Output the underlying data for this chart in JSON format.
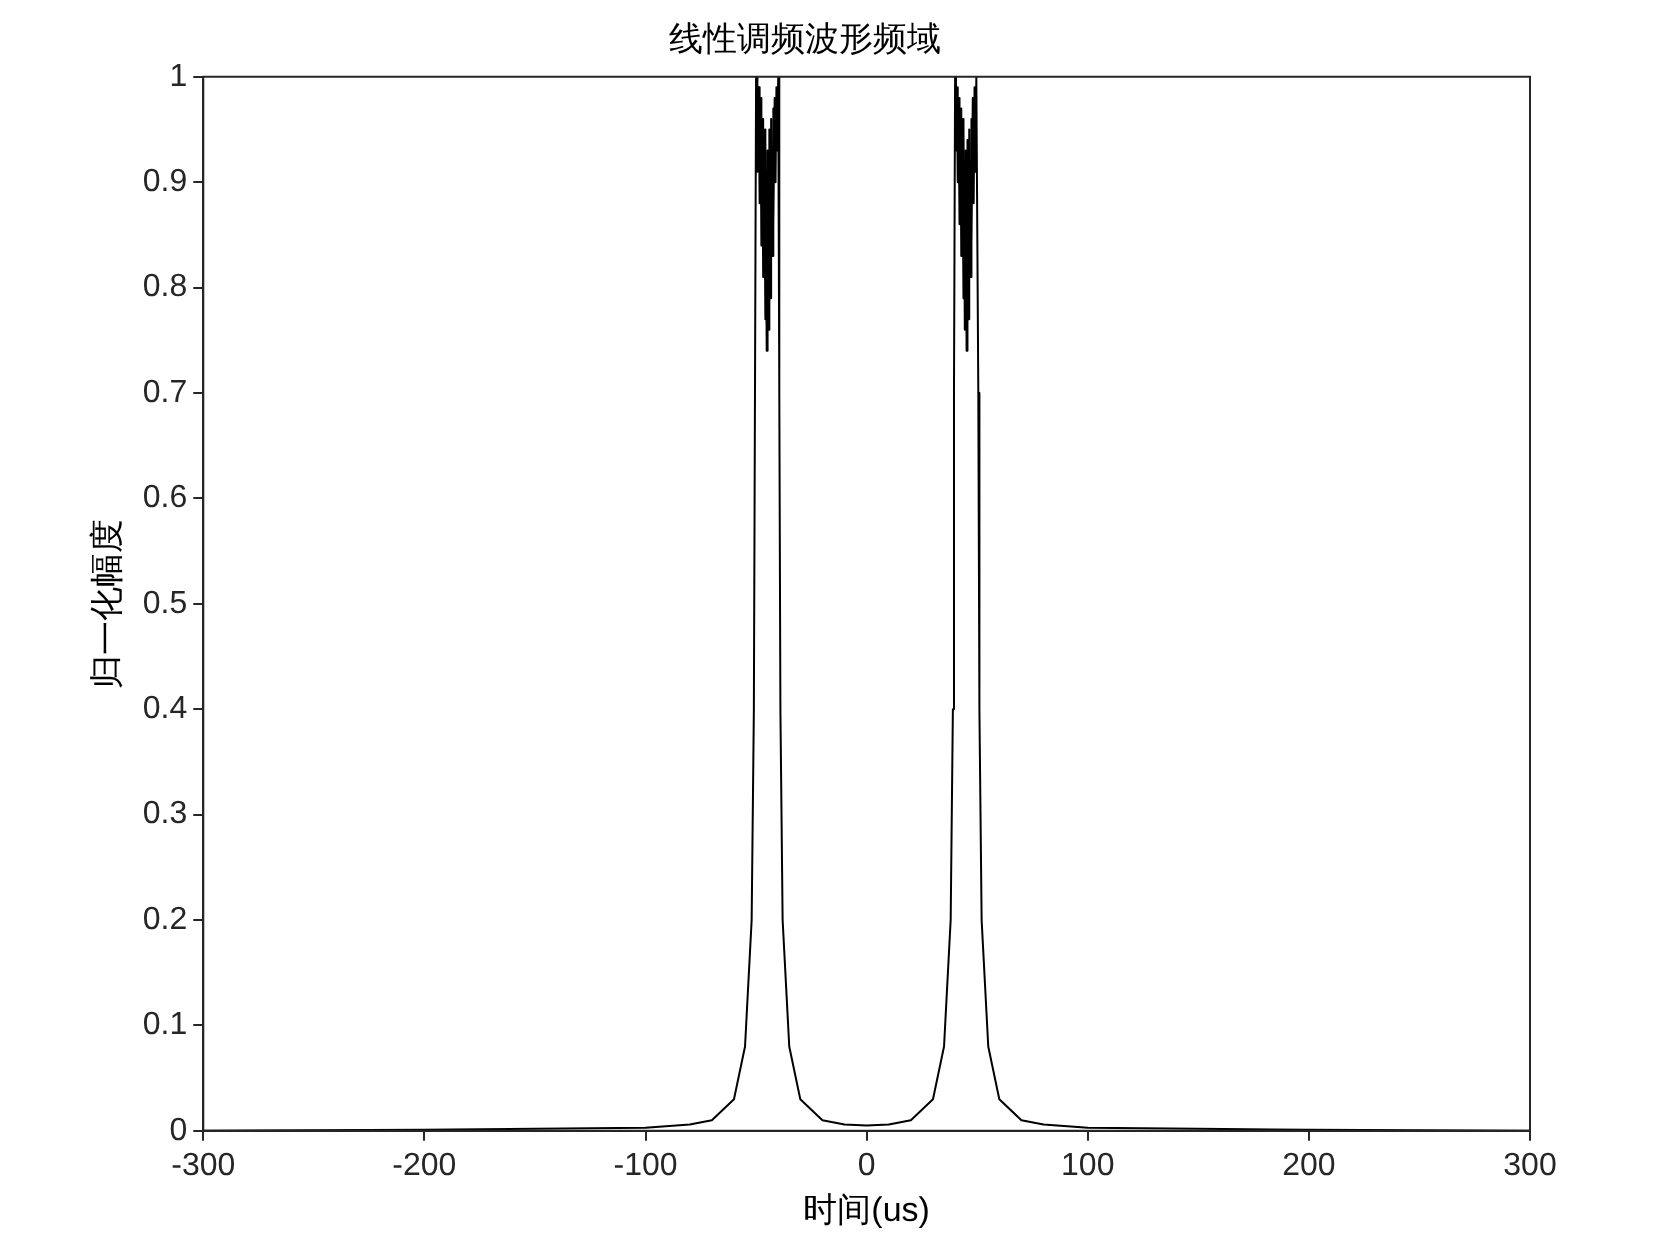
{
  "chart_data": {
    "type": "line",
    "title": "线性调频波形频域",
    "xlabel": "时间(us)",
    "ylabel": "归一化幅度",
    "xlim": [
      -300,
      300
    ],
    "xticks": [
      -300,
      -200,
      -100,
      0,
      100,
      200,
      300
    ],
    "ylim": [
      0,
      1
    ],
    "yticks": [
      0,
      0.1,
      0.2,
      0.3,
      0.4,
      0.5,
      0.6,
      0.7,
      0.8,
      0.9,
      1
    ],
    "grid": false,
    "legend": false,
    "marker": "none",
    "line_style": "solid",
    "x": [
      -300,
      -200,
      -150,
      -100,
      -80,
      -70,
      -60,
      -55,
      -52,
      -51,
      -50.5,
      -50,
      -49.6,
      -49.2,
      -48.8,
      -48.4,
      -48,
      -47.6,
      -47.2,
      -46.8,
      -46.4,
      -46,
      -45.6,
      -45.2,
      -44.8,
      -44.4,
      -44,
      -43.6,
      -43.2,
      -42.8,
      -42.4,
      -42,
      -41.6,
      -41.2,
      -40.8,
      -40.4,
      -40,
      -39.5,
      -39,
      -38,
      -35,
      -30,
      -20,
      -10,
      0,
      10,
      20,
      30,
      35,
      38,
      39,
      39.5,
      40,
      40.4,
      40.8,
      41.2,
      41.6,
      42,
      42.4,
      42.8,
      43.2,
      43.6,
      44,
      44.4,
      44.8,
      45.2,
      45.6,
      46,
      46.4,
      46.8,
      47.2,
      47.6,
      48,
      48.4,
      48.8,
      49.2,
      49.6,
      50,
      50.5,
      51,
      52,
      55,
      60,
      70,
      80,
      100,
      150,
      200,
      300
    ],
    "series": [
      {
        "color": "#000000",
        "values": [
          0,
          0.001,
          0.002,
          0.003,
          0.006,
          0.01,
          0.03,
          0.08,
          0.2,
          0.4,
          0.7,
          1,
          1,
          0.91,
          0.99,
          0.88,
          0.98,
          0.84,
          0.96,
          0.81,
          0.95,
          0.77,
          0.94,
          0.74,
          0.93,
          0.76,
          0.95,
          0.79,
          0.96,
          0.83,
          0.97,
          0.86,
          0.98,
          0.9,
          0.99,
          0.93,
          1,
          0.7,
          0.4,
          0.2,
          0.08,
          0.03,
          0.01,
          0.006,
          0.005,
          0.006,
          0.01,
          0.03,
          0.08,
          0.2,
          0.4,
          0.7,
          1,
          0.93,
          0.99,
          0.9,
          0.98,
          0.86,
          0.97,
          0.83,
          0.96,
          0.79,
          0.95,
          0.76,
          0.93,
          0.74,
          0.94,
          0.77,
          0.95,
          0.81,
          0.96,
          0.84,
          0.98,
          0.88,
          0.99,
          0.91,
          1,
          1,
          0.7,
          0.4,
          0.2,
          0.08,
          0.03,
          0.01,
          0.006,
          0.003,
          0.002,
          0.001,
          0
        ]
      }
    ]
  }
}
